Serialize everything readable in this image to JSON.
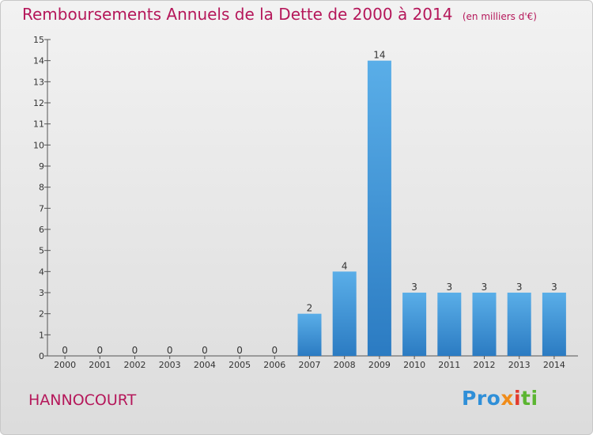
{
  "title": "Remboursements Annuels de la Dette de 2000 à 2014",
  "unit": "(en milliers d'€)",
  "commune": "HANNOCOURT",
  "logo": {
    "p1": "Pro",
    "p2": "x",
    "p3": "i",
    "p4": "ti"
  },
  "colors": {
    "title": "#b5175a",
    "bar_top": "#5aaee8",
    "bar_bottom": "#2b7bc2"
  },
  "chart_data": {
    "type": "bar",
    "title": "Remboursements Annuels de la Dette de 2000 à 2014",
    "categories": [
      "2000",
      "2001",
      "2002",
      "2003",
      "2004",
      "2005",
      "2006",
      "2007",
      "2008",
      "2009",
      "2010",
      "2011",
      "2012",
      "2013",
      "2014"
    ],
    "values": [
      0,
      0,
      0,
      0,
      0,
      0,
      0,
      2,
      4,
      14,
      3,
      3,
      3,
      3,
      3
    ],
    "ylim": [
      0,
      15
    ],
    "yticks": [
      0,
      1,
      2,
      3,
      4,
      5,
      6,
      7,
      8,
      9,
      10,
      11,
      12,
      13,
      14,
      15
    ],
    "grid": false,
    "data_labels": true
  }
}
